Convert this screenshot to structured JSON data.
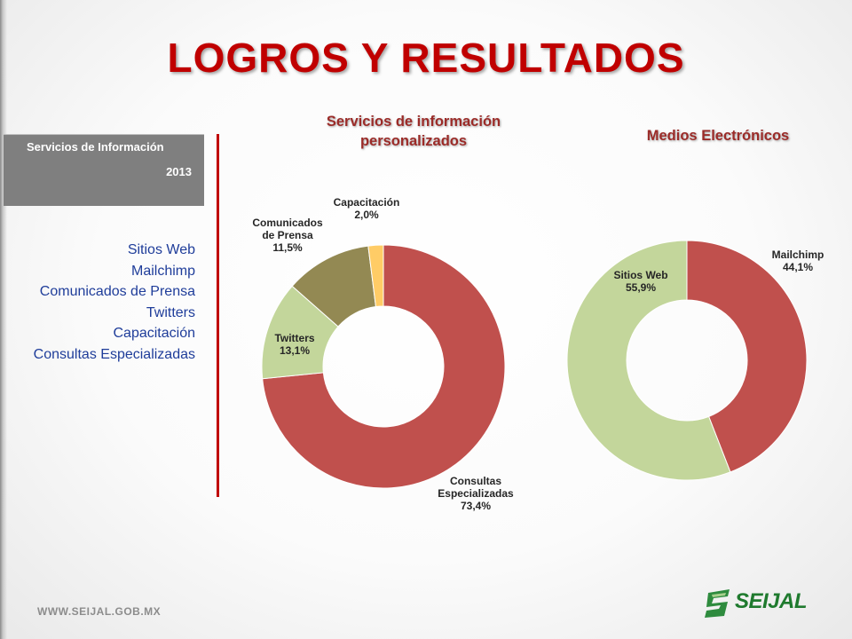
{
  "slide": {
    "title": "LOGROS Y RESULTADOS",
    "footer_url": "WWW.SEIJAL.GOB.MX",
    "logo_text": "SEIJAL"
  },
  "info_box": {
    "title": "Servicios de Información",
    "year": "2013"
  },
  "legend": {
    "items": [
      "Sitios Web",
      "Mailchimp",
      "Comunicados de Prensa",
      "Twitters",
      "Capacitación",
      "Consultas Especializadas"
    ]
  },
  "chart_data": [
    {
      "type": "pie",
      "subtype": "doughnut",
      "title": "Servicios de información personalizados",
      "slices": [
        {
          "label": "Consultas Especializadas",
          "value": 73.4,
          "display": "73,4%",
          "color": "#c0504d"
        },
        {
          "label": "Twitters",
          "value": 13.1,
          "display": "13,1%",
          "color": "#c3d69b"
        },
        {
          "label": "Comunicados de Prensa",
          "value": 11.5,
          "display": "11,5%",
          "color": "#938953"
        },
        {
          "label": "Capacitación",
          "value": 2.0,
          "display": "2,0%",
          "color": "#ffcc66"
        }
      ],
      "data_labels": [
        {
          "lines": [
            "Consultas",
            "Especializadas",
            "73,4%"
          ]
        },
        {
          "lines": [
            "Twitters",
            "13,1%"
          ]
        },
        {
          "lines": [
            "Comunicados",
            "de Prensa",
            "11,5%"
          ]
        },
        {
          "lines": [
            "Capacitación",
            "2,0%"
          ]
        }
      ]
    },
    {
      "type": "pie",
      "subtype": "doughnut",
      "title": "Medios Electrónicos",
      "slices": [
        {
          "label": "Mailchimp",
          "value": 44.1,
          "display": "44,1%",
          "color": "#c0504d"
        },
        {
          "label": "Sitios Web",
          "value": 55.9,
          "display": "55,9%",
          "color": "#c3d69b"
        }
      ],
      "data_labels": [
        {
          "lines": [
            "Mailchimp",
            "44,1%"
          ]
        },
        {
          "lines": [
            "Sitios Web",
            "55,9%"
          ]
        }
      ]
    }
  ]
}
